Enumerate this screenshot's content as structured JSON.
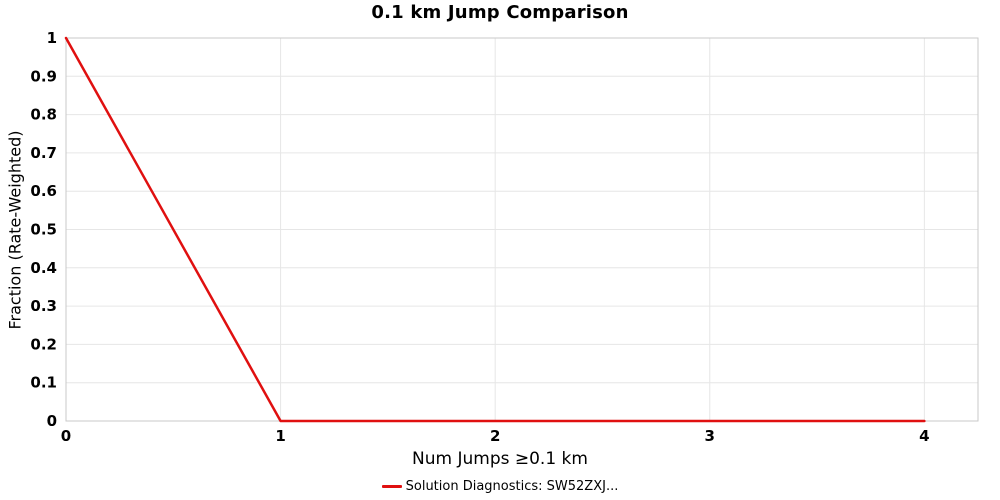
{
  "chart_data": {
    "type": "line",
    "title": "0.1 km Jump Comparison",
    "xlabel": "Num Jumps ≥0.1 km",
    "ylabel": "Fraction (Rate-Weighted)",
    "x": [
      0,
      1,
      2,
      3,
      4
    ],
    "series": [
      {
        "name": "Solution Diagnostics: SW52ZXJ...",
        "color": "#e01010",
        "values": [
          1,
          0,
          0,
          0,
          0
        ]
      }
    ],
    "xlim": [
      0,
      4.25
    ],
    "ylim": [
      0,
      1
    ],
    "xticks": [
      0,
      1,
      2,
      3,
      4
    ],
    "yticks": [
      0,
      0.1,
      0.2,
      0.3,
      0.4,
      0.5,
      0.6,
      0.7,
      0.8,
      0.9,
      1
    ],
    "grid": true,
    "grid_color": "#e6e6e6",
    "border_color": "#c9c9c9",
    "legend_position": "bottom"
  }
}
